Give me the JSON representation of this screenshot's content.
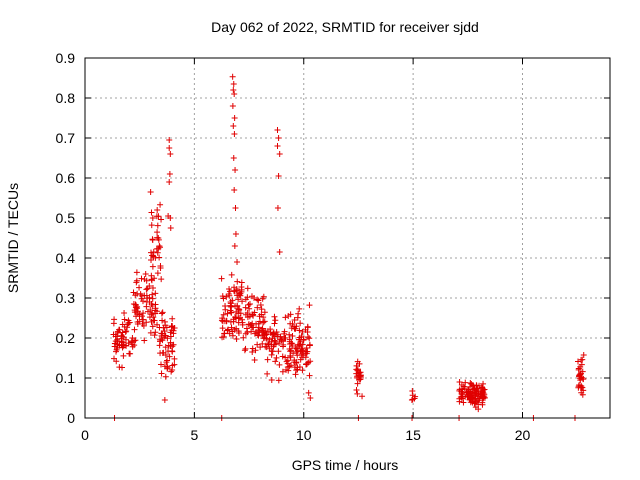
{
  "chart_data": {
    "type": "scatter",
    "title": "Day 062 of 2022, SRMTID for receiver sjdd",
    "xlabel": "GPS time / hours",
    "ylabel": "SRMTID / TECUs",
    "xlim": [
      0,
      24
    ],
    "ylim": [
      0,
      0.9
    ],
    "xticks": [
      0,
      5,
      10,
      15,
      20
    ],
    "yticks": [
      0,
      0.1,
      0.2,
      0.3,
      0.4,
      0.5,
      0.6,
      0.7,
      0.8,
      0.9
    ],
    "grid": true,
    "legend": "none",
    "series": [
      {
        "name": "SRMTID",
        "color": "#e00000",
        "marker": "plus",
        "clusters": [
          {
            "x_range": [
              1.3,
              2.2
            ],
            "y_range": [
              0.1,
              0.3
            ],
            "count": 60
          },
          {
            "x_range": [
              2.2,
              3.3
            ],
            "y_range": [
              0.15,
              0.4
            ],
            "count": 80
          },
          {
            "x_range": [
              3.0,
              3.5
            ],
            "y_range": [
              0.3,
              0.57
            ],
            "count": 30
          },
          {
            "x_range": [
              3.4,
              4.1
            ],
            "y_range": [
              0.08,
              0.3
            ],
            "count": 60
          },
          {
            "x_range": [
              6.2,
              7.2
            ],
            "y_range": [
              0.15,
              0.38
            ],
            "count": 80
          },
          {
            "x_range": [
              7.2,
              8.2
            ],
            "y_range": [
              0.12,
              0.35
            ],
            "count": 70
          },
          {
            "x_range": [
              8.2,
              9.5
            ],
            "y_range": [
              0.08,
              0.3
            ],
            "count": 90
          },
          {
            "x_range": [
              9.5,
              10.3
            ],
            "y_range": [
              0.05,
              0.3
            ],
            "count": 70
          },
          {
            "x_range": [
              12.4,
              12.7
            ],
            "y_range": [
              0.04,
              0.17
            ],
            "count": 25
          },
          {
            "x_range": [
              14.9,
              15.1
            ],
            "y_range": [
              0.04,
              0.07
            ],
            "count": 6
          },
          {
            "x_range": [
              17.1,
              18.3
            ],
            "y_range": [
              0.02,
              0.1
            ],
            "count": 110
          },
          {
            "x_range": [
              22.5,
              22.8
            ],
            "y_range": [
              0.04,
              0.17
            ],
            "count": 30
          }
        ],
        "points": [
          [
            6.75,
            0.853
          ],
          [
            6.8,
            0.835
          ],
          [
            6.78,
            0.82
          ],
          [
            6.82,
            0.81
          ],
          [
            6.76,
            0.78
          ],
          [
            6.84,
            0.75
          ],
          [
            6.78,
            0.73
          ],
          [
            6.83,
            0.71
          ],
          [
            6.8,
            0.65
          ],
          [
            6.86,
            0.62
          ],
          [
            6.82,
            0.57
          ],
          [
            6.88,
            0.525
          ],
          [
            6.9,
            0.46
          ],
          [
            6.85,
            0.43
          ],
          [
            6.95,
            0.39
          ],
          [
            8.8,
            0.72
          ],
          [
            8.85,
            0.7
          ],
          [
            8.8,
            0.68
          ],
          [
            8.9,
            0.66
          ],
          [
            8.85,
            0.605
          ],
          [
            8.82,
            0.525
          ],
          [
            8.9,
            0.415
          ],
          [
            3.85,
            0.695
          ],
          [
            3.85,
            0.675
          ],
          [
            3.9,
            0.66
          ],
          [
            3.88,
            0.61
          ],
          [
            3.85,
            0.59
          ],
          [
            3.8,
            0.505
          ],
          [
            3.9,
            0.5
          ],
          [
            3.92,
            0.475
          ],
          [
            3.3,
            0.52
          ],
          [
            3.35,
            0.45
          ],
          [
            3.4,
            0.43
          ],
          [
            3.45,
            0.38
          ],
          [
            3.0,
            0.565
          ],
          [
            3.1,
            0.5
          ],
          [
            3.65,
            0.045
          ],
          [
            10.3,
            0.05
          ],
          [
            1.35,
            0.0
          ],
          [
            6.25,
            0.0
          ],
          [
            12.5,
            0.0
          ],
          [
            14.95,
            0.0
          ],
          [
            17.1,
            0.0
          ],
          [
            20.5,
            0.0
          ],
          [
            22.4,
            0.0
          ]
        ]
      }
    ]
  }
}
